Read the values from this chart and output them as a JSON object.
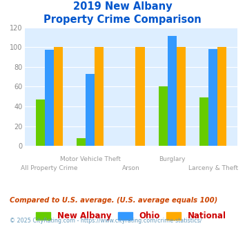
{
  "title_line1": "2019 New Albany",
  "title_line2": "Property Crime Comparison",
  "categories": [
    "All Property Crime",
    "Motor Vehicle Theft",
    "Arson",
    "Burglary",
    "Larceny & Theft"
  ],
  "x_labels_top": [
    "",
    "Motor Vehicle Theft",
    "",
    "Burglary",
    ""
  ],
  "x_labels_bottom": [
    "All Property Crime",
    "",
    "Arson",
    "",
    "Larceny & Theft"
  ],
  "series": {
    "New Albany": [
      47,
      8,
      0,
      60,
      49
    ],
    "Ohio": [
      97,
      73,
      0,
      111,
      98
    ],
    "National": [
      100,
      100,
      100,
      100,
      100
    ]
  },
  "colors": {
    "New Albany": "#66cc00",
    "Ohio": "#3399ff",
    "National": "#ffaa00"
  },
  "ylim": [
    0,
    120
  ],
  "yticks": [
    0,
    20,
    40,
    60,
    80,
    100,
    120
  ],
  "background_color": "#ddeeff",
  "title_color": "#0055cc",
  "subtitle_note": "Compared to U.S. average. (U.S. average equals 100)",
  "footer": "© 2025 CityRating.com - https://www.cityrating.com/crime-statistics/",
  "legend_labels": [
    "New Albany",
    "Ohio",
    "National"
  ],
  "bar_width": 0.22
}
